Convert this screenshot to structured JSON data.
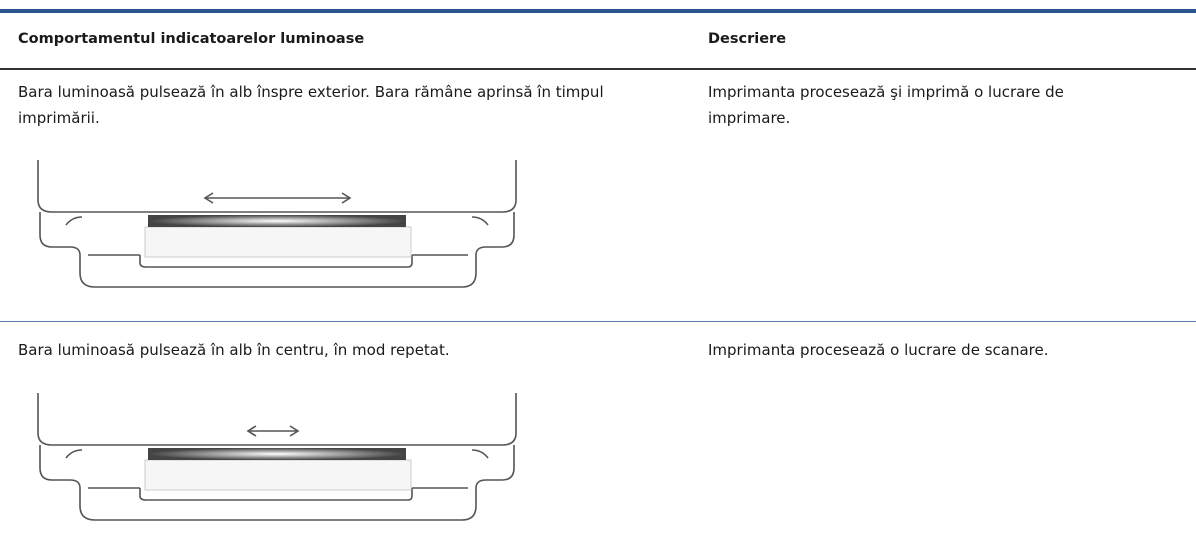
{
  "table": {
    "headers": [
      "Comportamentul indicatoarelor luminoase",
      "Descriere"
    ],
    "rows": [
      [
        "Bara luminoasă pulsează în alb înspre exterior. Bara rămâne aprinsă în timpul imprimării.",
        "Imprimanta procesează şi imprimă o lucrare de imprimare."
      ],
      [
        "Bara luminoasă pulsează în alb în centru, în mod repetat.",
        "Imprimanta procesează o lucrare de scanare."
      ]
    ]
  }
}
